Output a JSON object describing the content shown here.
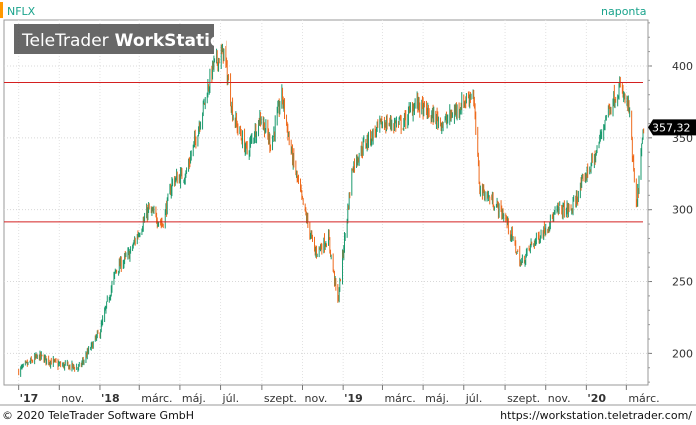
{
  "chart_data": {
    "type": "candlestick",
    "symbol": "NFLX",
    "interval_label": "naponta",
    "last_price_label": "357,32",
    "last_value": 357.32,
    "ylim": [
      178,
      432
    ],
    "y_ticks": [
      200,
      250,
      300,
      350,
      400
    ],
    "horizontal_lines": [
      388.5,
      291.5
    ],
    "x_tick_labels": [
      "'17",
      "nov.",
      "'18",
      "márc.",
      "máj.",
      "júl.",
      "szept.",
      "nov.",
      "'19",
      "márc.",
      "máj.",
      "júl.",
      "szept.",
      "nov.",
      "'20",
      "márc."
    ],
    "series_outline": [
      [
        "2017-09-01",
        188
      ],
      [
        "2017-10-01",
        198
      ],
      [
        "2017-11-01",
        192
      ],
      [
        "2017-12-01",
        190
      ],
      [
        "2018-01-01",
        215
      ],
      [
        "2018-01-25",
        258
      ],
      [
        "2018-02-15",
        270
      ],
      [
        "2018-03-15",
        300
      ],
      [
        "2018-04-05",
        290
      ],
      [
        "2018-04-20",
        320
      ],
      [
        "2018-05-10",
        325
      ],
      [
        "2018-05-25",
        350
      ],
      [
        "2018-06-20",
        400
      ],
      [
        "2018-07-06",
        410
      ],
      [
        "2018-07-20",
        365
      ],
      [
        "2018-08-10",
        340
      ],
      [
        "2018-08-30",
        365
      ],
      [
        "2018-09-15",
        345
      ],
      [
        "2018-10-01",
        380
      ],
      [
        "2018-10-15",
        340
      ],
      [
        "2018-11-01",
        305
      ],
      [
        "2018-11-20",
        270
      ],
      [
        "2018-12-10",
        280
      ],
      [
        "2018-12-24",
        236
      ],
      [
        "2019-01-15",
        330
      ],
      [
        "2019-02-01",
        345
      ],
      [
        "2019-03-01",
        360
      ],
      [
        "2019-04-01",
        360
      ],
      [
        "2019-04-20",
        375
      ],
      [
        "2019-05-05",
        368
      ],
      [
        "2019-06-01",
        360
      ],
      [
        "2019-07-01",
        375
      ],
      [
        "2019-07-15",
        382
      ],
      [
        "2019-07-25",
        315
      ],
      [
        "2019-08-15",
        305
      ],
      [
        "2019-09-01",
        295
      ],
      [
        "2019-09-25",
        262
      ],
      [
        "2019-10-10",
        275
      ],
      [
        "2019-10-25",
        283
      ],
      [
        "2019-11-20",
        300
      ],
      [
        "2019-12-10",
        300
      ],
      [
        "2019-12-30",
        323
      ],
      [
        "2020-01-15",
        338
      ],
      [
        "2020-02-01",
        368
      ],
      [
        "2020-02-20",
        385
      ],
      [
        "2020-03-05",
        370
      ],
      [
        "2020-03-16",
        300
      ],
      [
        "2020-03-27",
        357
      ]
    ]
  },
  "footer": {
    "copyright": "© 2020 TeleTrader Software GmbH",
    "url": "https://workstation.teletrader.com/"
  },
  "watermark": {
    "brand_regular": "TeleTrader",
    "brand_bold": "WorkStation"
  },
  "colors": {
    "up": "#1a9a6e",
    "down": "#ee6a1c",
    "level_line": "#d42020",
    "accent": "#ff9900",
    "label_teal": "#1aa38c"
  }
}
